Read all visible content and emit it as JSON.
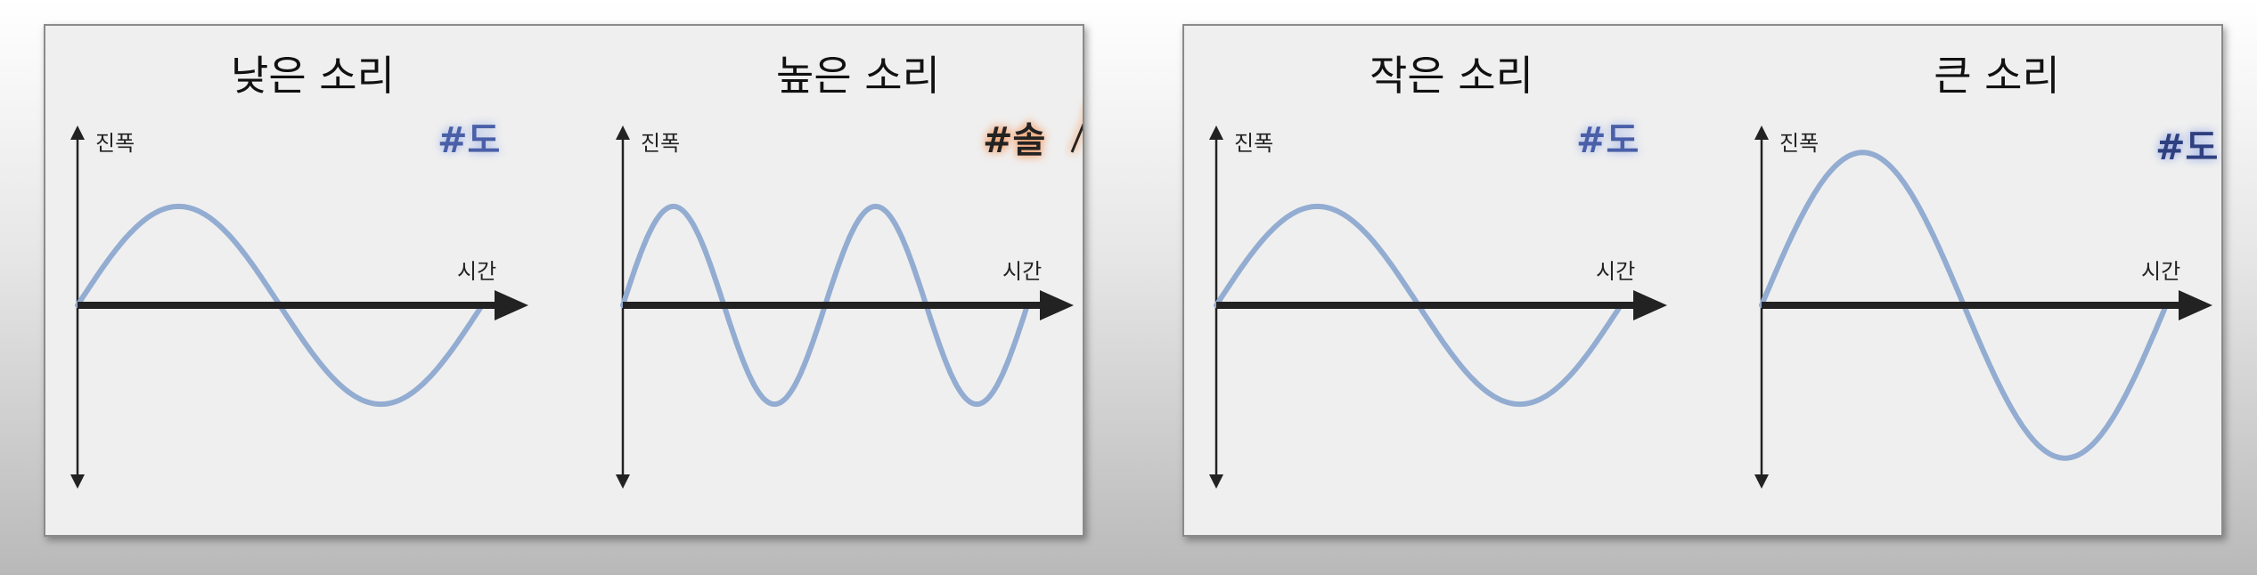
{
  "panels": [
    {
      "name": "pitch",
      "charts": [
        {
          "title": "낮은 소리",
          "amplitude_label": "진폭",
          "time_label": "시간",
          "note": "#도",
          "note_color": "#4a5fa8",
          "note_glow": "#bcc8ea",
          "cycles": 1,
          "amplitude": 0.55,
          "arrow": false
        },
        {
          "title": "높은 소리",
          "amplitude_label": "진폭",
          "time_label": "시간",
          "note": "#솔",
          "note_color": "#222222",
          "note_glow": "#f4a878",
          "cycles": 2,
          "amplitude": 0.55,
          "arrow": true
        }
      ]
    },
    {
      "name": "loudness",
      "charts": [
        {
          "title": "작은 소리",
          "amplitude_label": "진폭",
          "time_label": "시간",
          "note": "#도",
          "note_color": "#4a5fa8",
          "note_glow": "#bcc8ea",
          "cycles": 1,
          "amplitude": 0.55,
          "arrow": false
        },
        {
          "title": "큰 소리",
          "amplitude_label": "진폭",
          "time_label": "시간",
          "note": "#도",
          "note_color": "#2f3f80",
          "note_glow": "#aebde8",
          "cycles": 1,
          "amplitude": 0.85,
          "arrow": false,
          "big_note": true
        }
      ]
    }
  ],
  "wave_color": "#93acd1"
}
